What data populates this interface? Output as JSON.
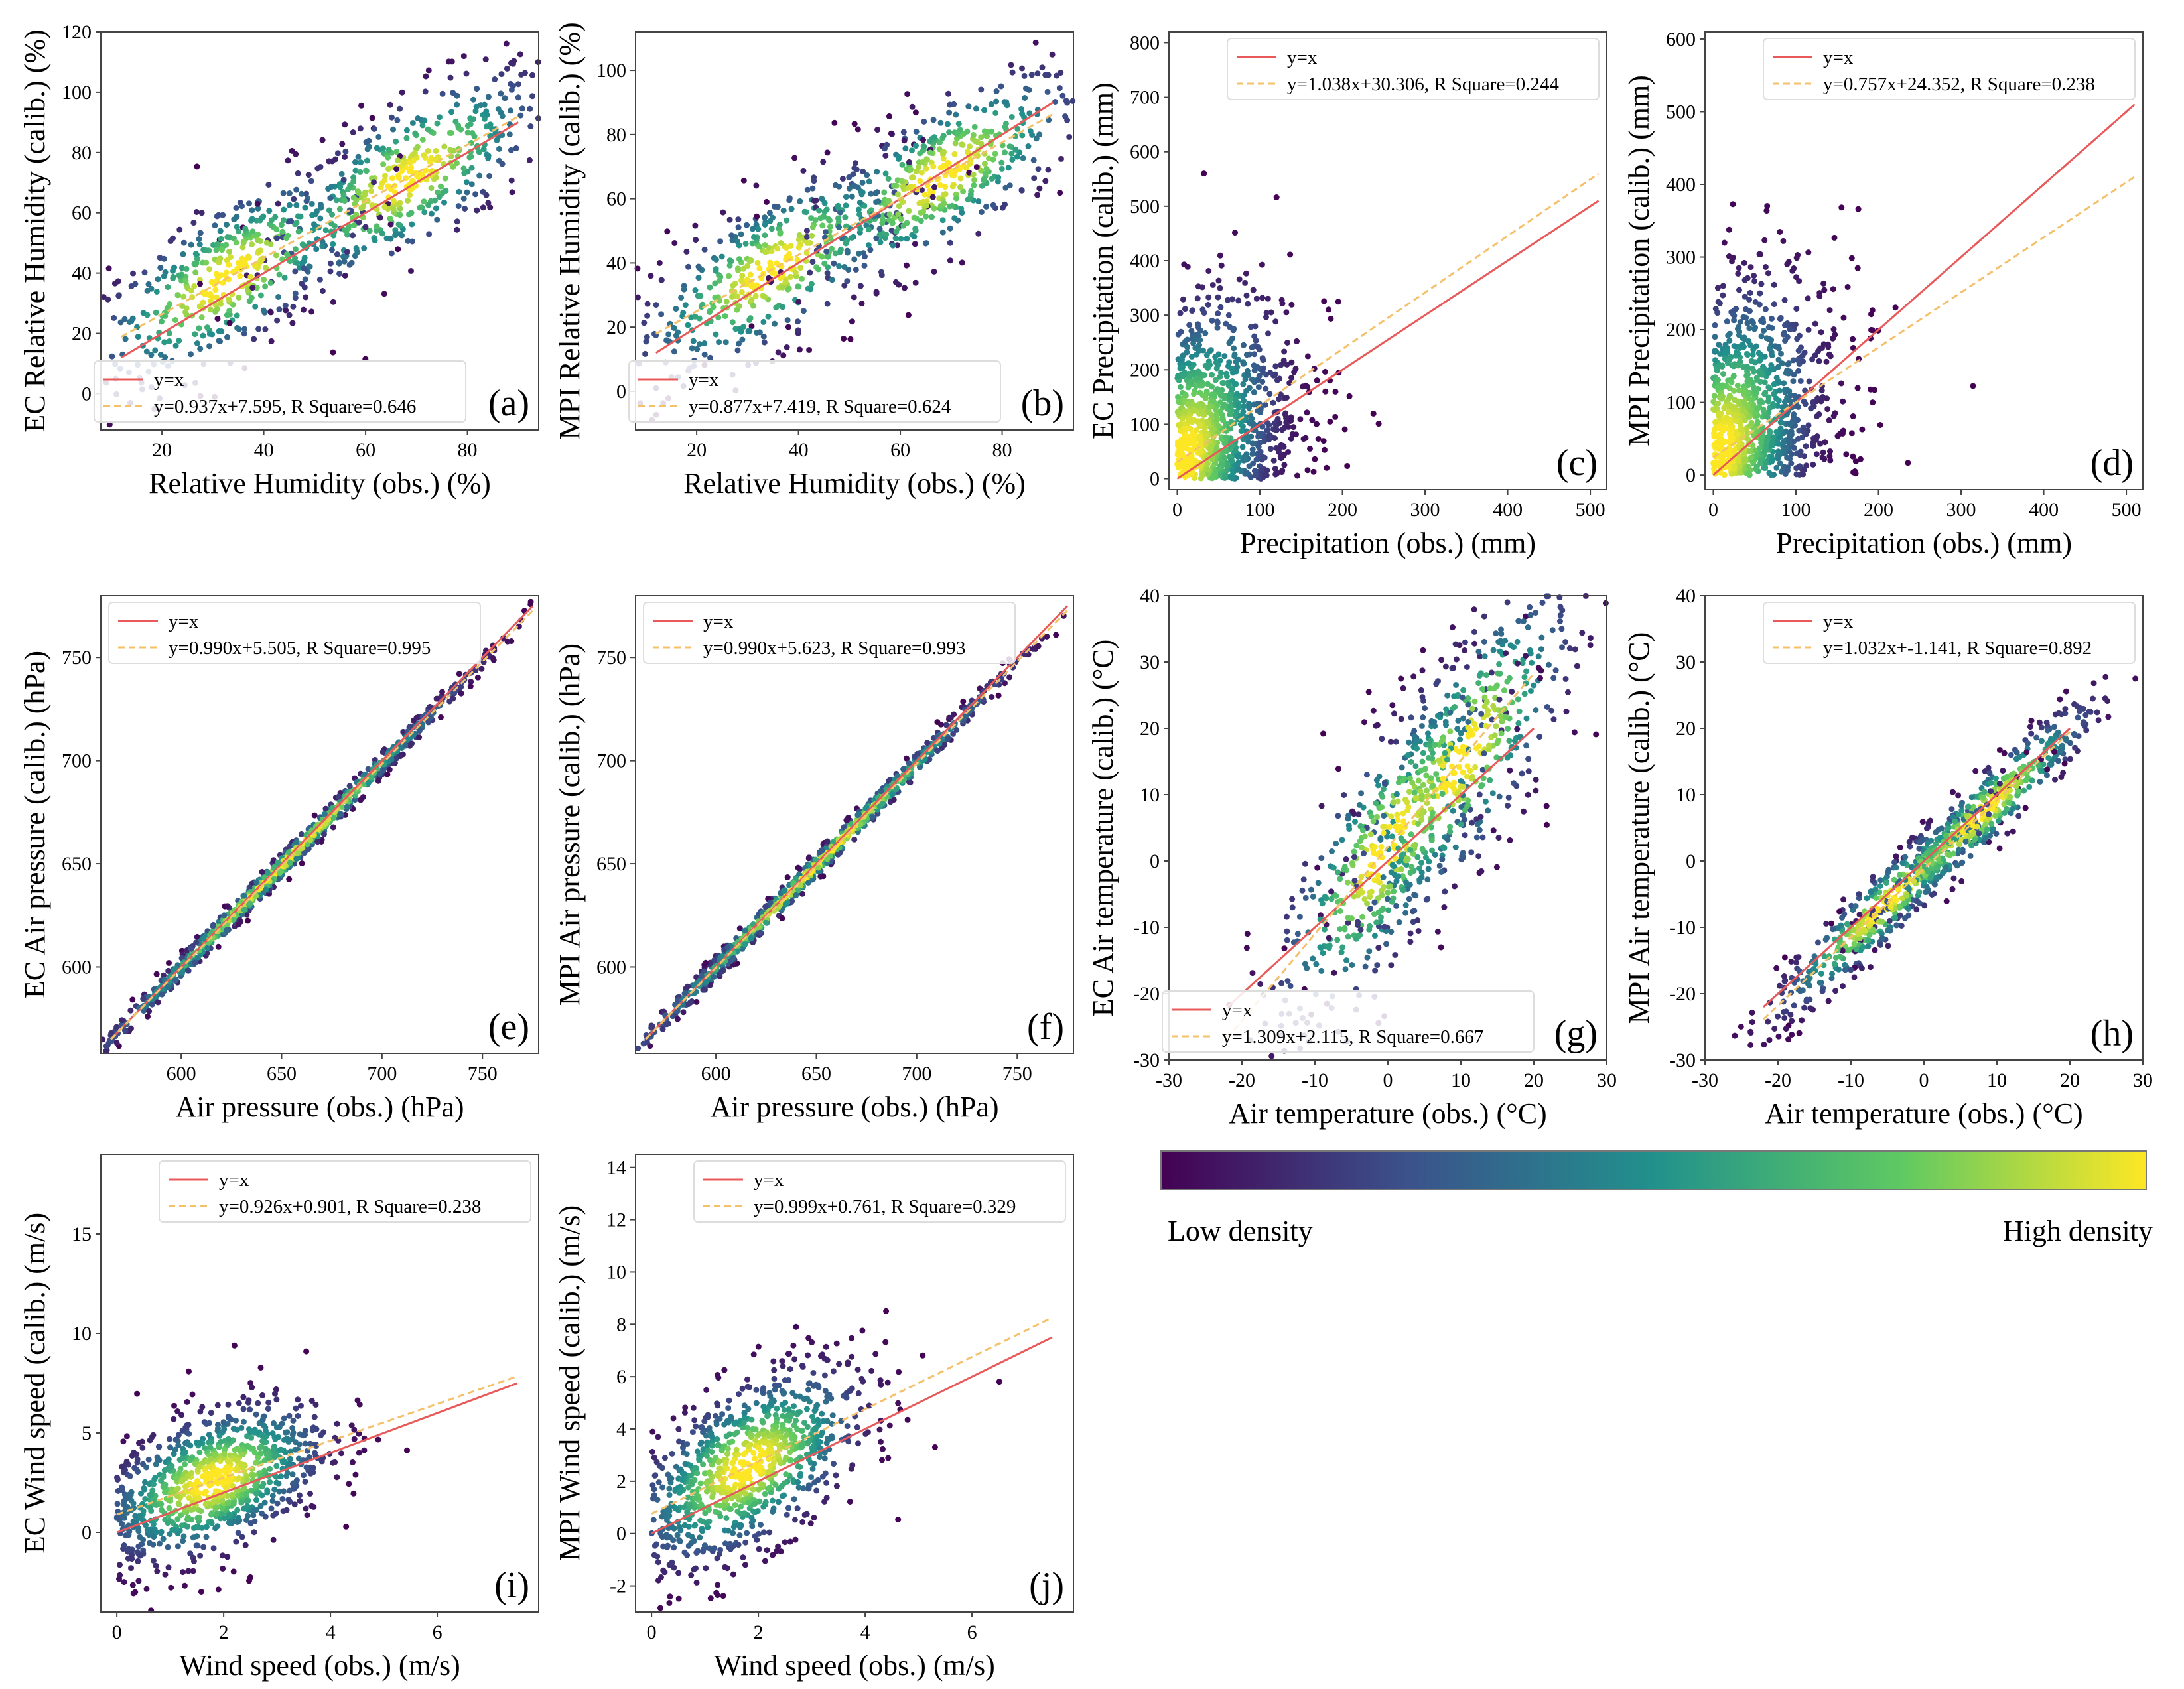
{
  "colors": {
    "low_density": "#440154",
    "mid_density": "#21918c",
    "high_density": "#fde725",
    "line_yx": "#e8595a",
    "line_fit": "#f5c06a"
  },
  "colorbar": {
    "low_label": "Low density",
    "high_label": "High density"
  },
  "chart_data": [
    {
      "type": "scatter",
      "panel": "(a)",
      "xlabel": "Relative Humidity (obs.) (%)",
      "ylabel": "EC Relative Humidity (calib.) (%)",
      "xlim": [
        8,
        94
      ],
      "ylim": [
        -12,
        120
      ],
      "xticks": [
        20,
        40,
        60,
        80
      ],
      "yticks": [
        0,
        20,
        40,
        60,
        80,
        100,
        120
      ],
      "legend_position": "bottom-right",
      "legend": [
        "y=x",
        "y=0.937x+7.595, R Square=0.646"
      ],
      "fit": {
        "slope": 0.937,
        "intercept": 7.595,
        "r_square": 0.646
      },
      "yx_range": [
        12,
        90
      ],
      "density_centers": [
        [
          68,
          70
        ],
        [
          33,
          37
        ]
      ],
      "spread": [
        14,
        13
      ]
    },
    {
      "type": "scatter",
      "panel": "(b)",
      "xlabel": "Relative Humidity (obs.) (%)",
      "ylabel": "MPI Relative Humidity (calib.) (%)",
      "xlim": [
        8,
        94
      ],
      "ylim": [
        -12,
        112
      ],
      "xticks": [
        20,
        40,
        60,
        80
      ],
      "yticks": [
        0,
        20,
        40,
        60,
        80,
        100
      ],
      "legend_position": "bottom-right",
      "legend": [
        "y=x",
        "y=0.877x+7.419, R Square=0.624"
      ],
      "fit": {
        "slope": 0.877,
        "intercept": 7.419,
        "r_square": 0.624
      },
      "yx_range": [
        12,
        90
      ],
      "density_centers": [
        [
          68,
          68
        ],
        [
          35,
          36
        ]
      ],
      "spread": [
        14,
        12
      ]
    },
    {
      "type": "scatter",
      "panel": "(c)",
      "xlabel": "Precipitation (obs.) (mm)",
      "ylabel": "EC Precipitation (calib.) (mm)",
      "xlim": [
        -10,
        520
      ],
      "ylim": [
        -20,
        820
      ],
      "xticks": [
        0,
        100,
        200,
        300,
        400,
        500
      ],
      "yticks": [
        0,
        100,
        200,
        300,
        400,
        500,
        600,
        700,
        800
      ],
      "legend_position": "top-right",
      "legend": [
        "y=x",
        "y=1.038x+30.306, R Square=0.244"
      ],
      "fit": {
        "slope": 1.038,
        "intercept": 30.306,
        "r_square": 0.244
      },
      "yx_range": [
        0,
        510
      ],
      "density_centers": [
        [
          5,
          20
        ]
      ],
      "spread": [
        60,
        140
      ]
    },
    {
      "type": "scatter",
      "panel": "(d)",
      "xlabel": "Precipitation (obs.) (mm)",
      "ylabel": "MPI Precipitation (calib.) (mm)",
      "xlim": [
        -10,
        520
      ],
      "ylim": [
        -20,
        610
      ],
      "xticks": [
        0,
        100,
        200,
        300,
        400,
        500
      ],
      "yticks": [
        0,
        100,
        200,
        300,
        400,
        500,
        600
      ],
      "legend_position": "top-right",
      "legend": [
        "y=x",
        "y=0.757x+24.352, R Square=0.238"
      ],
      "fit": {
        "slope": 0.757,
        "intercept": 24.352,
        "r_square": 0.238
      },
      "yx_range": [
        0,
        510
      ],
      "density_centers": [
        [
          5,
          15
        ]
      ],
      "spread": [
        60,
        110
      ]
    },
    {
      "type": "scatter",
      "panel": "(e)",
      "xlabel": "Air pressure (obs.) (hPa)",
      "ylabel": "EC Air pressure (calib.) (hPa)",
      "xlim": [
        560,
        778
      ],
      "ylim": [
        558,
        780
      ],
      "xticks": [
        600,
        650,
        700,
        750
      ],
      "yticks": [
        600,
        650,
        700,
        750
      ],
      "legend_position": "top-left",
      "legend": [
        "y=x",
        "y=0.990x+5.505, R Square=0.995"
      ],
      "fit": {
        "slope": 0.99,
        "intercept": 5.505,
        "r_square": 0.995
      },
      "yx_range": [
        565,
        775
      ],
      "density_centers": [
        [
          650,
          650
        ]
      ],
      "spread": [
        50,
        3
      ]
    },
    {
      "type": "scatter",
      "panel": "(f)",
      "xlabel": "Air pressure (obs.) (hPa)",
      "ylabel": "MPI Air pressure (calib.) (hPa)",
      "xlim": [
        560,
        778
      ],
      "ylim": [
        558,
        780
      ],
      "xticks": [
        600,
        650,
        700,
        750
      ],
      "yticks": [
        600,
        650,
        700,
        750
      ],
      "legend_position": "top-left",
      "legend": [
        "y=x",
        "y=0.990x+5.623, R Square=0.993"
      ],
      "fit": {
        "slope": 0.99,
        "intercept": 5.623,
        "r_square": 0.993
      },
      "yx_range": [
        565,
        775
      ],
      "density_centers": [
        [
          650,
          650
        ]
      ],
      "spread": [
        50,
        3
      ]
    },
    {
      "type": "scatter",
      "panel": "(g)",
      "xlabel": "Air temperature (obs.) (°C)",
      "ylabel": "EC Air temperature (calib.) (°C)",
      "xlim": [
        -30,
        30
      ],
      "ylim": [
        -30,
        40
      ],
      "xticks": [
        -30,
        -20,
        -10,
        0,
        10,
        20,
        30
      ],
      "yticks": [
        -30,
        -20,
        -10,
        0,
        10,
        20,
        30,
        40
      ],
      "legend_position": "bottom-right",
      "legend": [
        "y=x",
        "y=1.309x+2.115, R Square=0.667"
      ],
      "fit": {
        "slope": 1.309,
        "intercept": 2.115,
        "r_square": 0.667
      },
      "yx_range": [
        -22,
        20
      ],
      "density_centers": [
        [
          10,
          9
        ],
        [
          0,
          0
        ]
      ],
      "spread": [
        8,
        9
      ]
    },
    {
      "type": "scatter",
      "panel": "(h)",
      "xlabel": "Air temperature (obs.) (°C)",
      "ylabel": "MPI Air temperature (calib.) (°C)",
      "xlim": [
        -30,
        30
      ],
      "ylim": [
        -30,
        40
      ],
      "xticks": [
        -30,
        -20,
        -10,
        0,
        10,
        20,
        30
      ],
      "yticks": [
        -30,
        -20,
        -10,
        0,
        10,
        20,
        30,
        40
      ],
      "legend_position": "top-right",
      "legend": [
        "y=x",
        "y=1.032x+-1.141, R Square=0.892"
      ],
      "fit": {
        "slope": 1.032,
        "intercept": -1.141,
        "r_square": 0.892
      },
      "yx_range": [
        -22,
        20
      ],
      "density_centers": [
        [
          -5,
          -6
        ],
        [
          8,
          8
        ]
      ],
      "spread": [
        8,
        3
      ]
    },
    {
      "type": "scatter",
      "panel": "(i)",
      "xlabel": "Wind speed (obs.) (m/s)",
      "ylabel": "EC Wind speed (calib.) (m/s)",
      "xlim": [
        -0.3,
        7.9
      ],
      "ylim": [
        -4,
        19
      ],
      "xticks": [
        0,
        2,
        4,
        6
      ],
      "yticks": [
        0,
        5,
        10,
        15
      ],
      "legend_position": "top-right",
      "legend": [
        "y=x",
        "y=0.926x+0.901, R Square=0.238"
      ],
      "fit": {
        "slope": 0.926,
        "intercept": 0.901,
        "r_square": 0.238
      },
      "yx_range": [
        0,
        7.5
      ],
      "density_centers": [
        [
          1.8,
          2.4
        ]
      ],
      "spread": [
        1.1,
        1.8
      ]
    },
    {
      "type": "scatter",
      "panel": "(j)",
      "xlabel": "Wind speed (obs.) (m/s)",
      "ylabel": "MPI Wind speed (calib.) (m/s)",
      "xlim": [
        -0.3,
        7.9
      ],
      "ylim": [
        -3,
        14.5
      ],
      "xticks": [
        0,
        2,
        4,
        6
      ],
      "yticks": [
        -2,
        0,
        2,
        4,
        6,
        8,
        10,
        12,
        14
      ],
      "legend_position": "top-right",
      "legend": [
        "y=x",
        "y=0.999x+0.761, R Square=0.329"
      ],
      "fit": {
        "slope": 0.999,
        "intercept": 0.761,
        "r_square": 0.329
      },
      "yx_range": [
        0,
        7.5
      ],
      "density_centers": [
        [
          1.8,
          2.3
        ]
      ],
      "spread": [
        1.1,
        1.6
      ]
    }
  ]
}
